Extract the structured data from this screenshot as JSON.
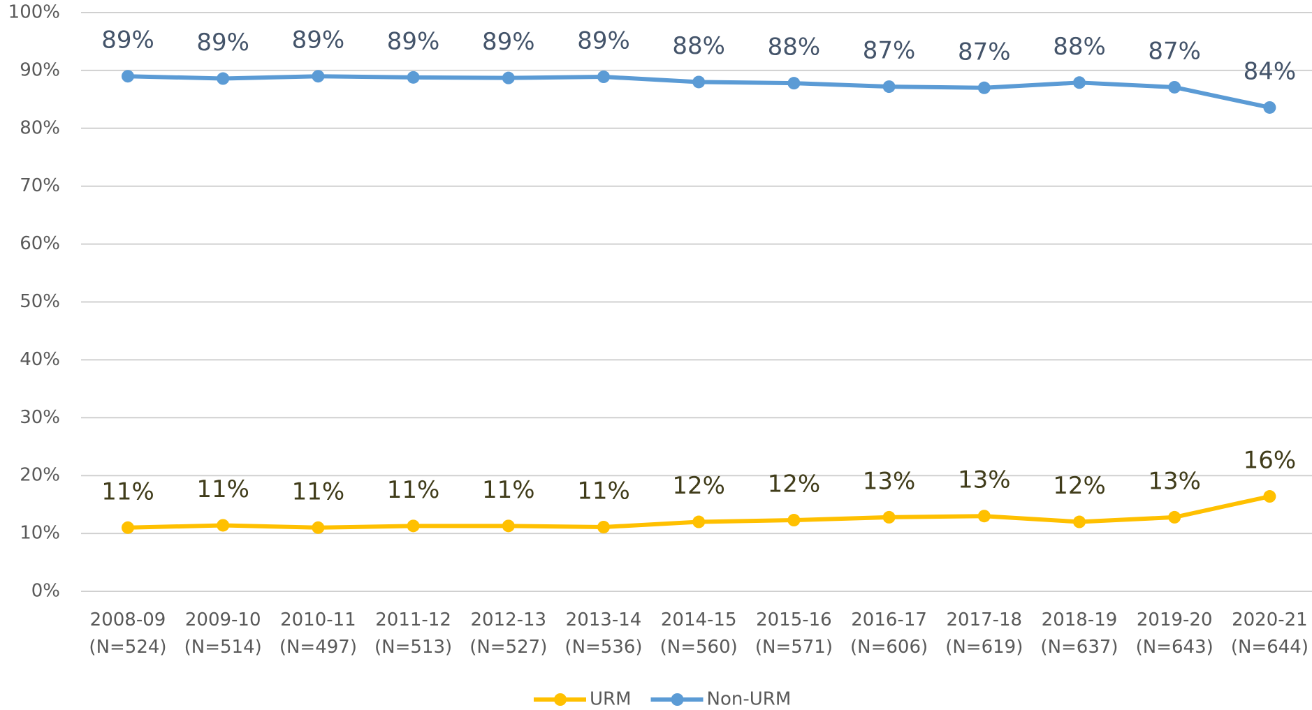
{
  "chart_data": {
    "type": "line",
    "categories": [
      "2008-09\n(N=524)",
      "2009-10\n(N=514)",
      "2010-11\n(N=497)",
      "2011-12\n(N=513)",
      "2012-13\n(N=527)",
      "2013-14\n(N=536)",
      "2014-15\n(N=560)",
      "2015-16\n(N=571)",
      "2016-17\n(N=606)",
      "2017-18\n(N=619)",
      "2018-19\n(N=637)",
      "2019-20\n(N=643)",
      "2020-21\n(N=644)"
    ],
    "series": [
      {
        "name": "URM",
        "color": "#ffc000",
        "label_color": "#403c1a",
        "values": [
          11,
          11.4,
          11,
          11.3,
          11.3,
          11.1,
          12,
          12.3,
          12.8,
          13,
          12,
          12.8,
          16.4
        ],
        "value_labels": [
          "11%",
          "11%",
          "11%",
          "11%",
          "11%",
          "11%",
          "12%",
          "12%",
          "13%",
          "13%",
          "12%",
          "13%",
          "16%"
        ]
      },
      {
        "name": "Non-URM",
        "color": "#5b9bd5",
        "label_color": "#44546a",
        "values": [
          89,
          88.6,
          89,
          88.8,
          88.7,
          88.9,
          88,
          87.8,
          87.2,
          87,
          87.9,
          87.1,
          83.6
        ],
        "value_labels": [
          "89%",
          "89%",
          "89%",
          "89%",
          "89%",
          "89%",
          "88%",
          "88%",
          "87%",
          "87%",
          "88%",
          "87%",
          "84%"
        ]
      }
    ],
    "ylim": [
      0,
      100
    ],
    "yticks": [
      {
        "value": 0,
        "label": "0%"
      },
      {
        "value": 10,
        "label": "10%"
      },
      {
        "value": 20,
        "label": "20%"
      },
      {
        "value": 30,
        "label": "30%"
      },
      {
        "value": 40,
        "label": "40%"
      },
      {
        "value": 50,
        "label": "50%"
      },
      {
        "value": 60,
        "label": "60%"
      },
      {
        "value": 70,
        "label": "70%"
      },
      {
        "value": 80,
        "label": "80%"
      },
      {
        "value": 90,
        "label": "90%"
      },
      {
        "value": 100,
        "label": "100%"
      }
    ],
    "grid": true,
    "legend": "bottom"
  }
}
